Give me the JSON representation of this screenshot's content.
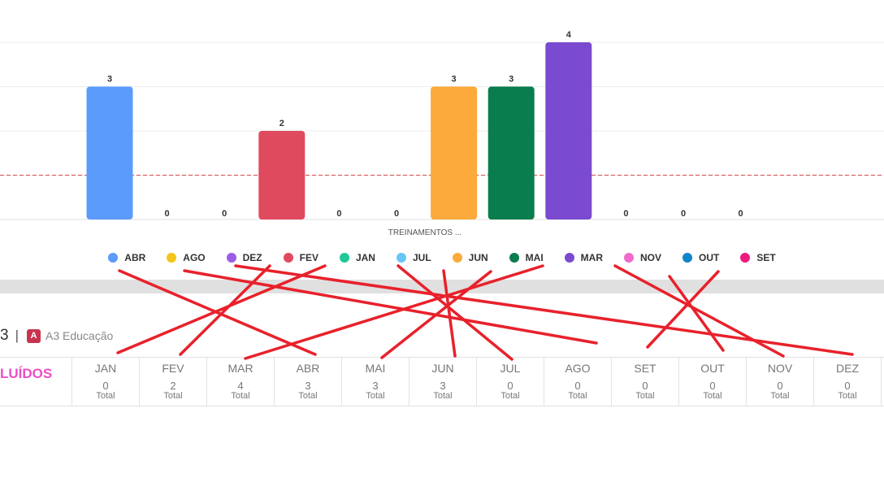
{
  "chart_data": {
    "type": "bar",
    "categories": [
      "ABR",
      "AGO",
      "DEZ",
      "FEV",
      "JAN",
      "JUL",
      "JUN",
      "MAI",
      "MAR",
      "NOV",
      "OUT",
      "SET"
    ],
    "values": [
      3,
      0,
      0,
      2,
      0,
      0,
      3,
      3,
      4,
      0,
      0,
      0
    ],
    "colors": [
      "#5b9bfb",
      "#f5c518",
      "#9b5de5",
      "#e04a5f",
      "#20c997",
      "#67c6f7",
      "#fbaa3b",
      "#0a7d4e",
      "#7a4ad0",
      "#f06bcc",
      "#0f85c9",
      "#f0197d"
    ],
    "xlabel": "TREINAMENTOS ...",
    "ylim": [
      0,
      4
    ],
    "reference_line": 1,
    "grid": true,
    "legend": "bottom"
  },
  "brand": {
    "count": "3",
    "separator": "|",
    "badge": "A",
    "name": "A3 Educação"
  },
  "summary": {
    "title": "LUÍDOS",
    "sub_label": "Total",
    "months": [
      {
        "name": "JAN",
        "value": "0"
      },
      {
        "name": "FEV",
        "value": "2"
      },
      {
        "name": "MAR",
        "value": "4"
      },
      {
        "name": "ABR",
        "value": "3"
      },
      {
        "name": "MAI",
        "value": "3"
      },
      {
        "name": "JUN",
        "value": "3"
      },
      {
        "name": "JUL",
        "value": "0"
      },
      {
        "name": "AGO",
        "value": "0"
      },
      {
        "name": "SET",
        "value": "0"
      },
      {
        "name": "OUT",
        "value": "0"
      },
      {
        "name": "NOV",
        "value": "0"
      },
      {
        "name": "DEZ",
        "value": "0"
      }
    ]
  },
  "annotation_color": "#e8212b"
}
